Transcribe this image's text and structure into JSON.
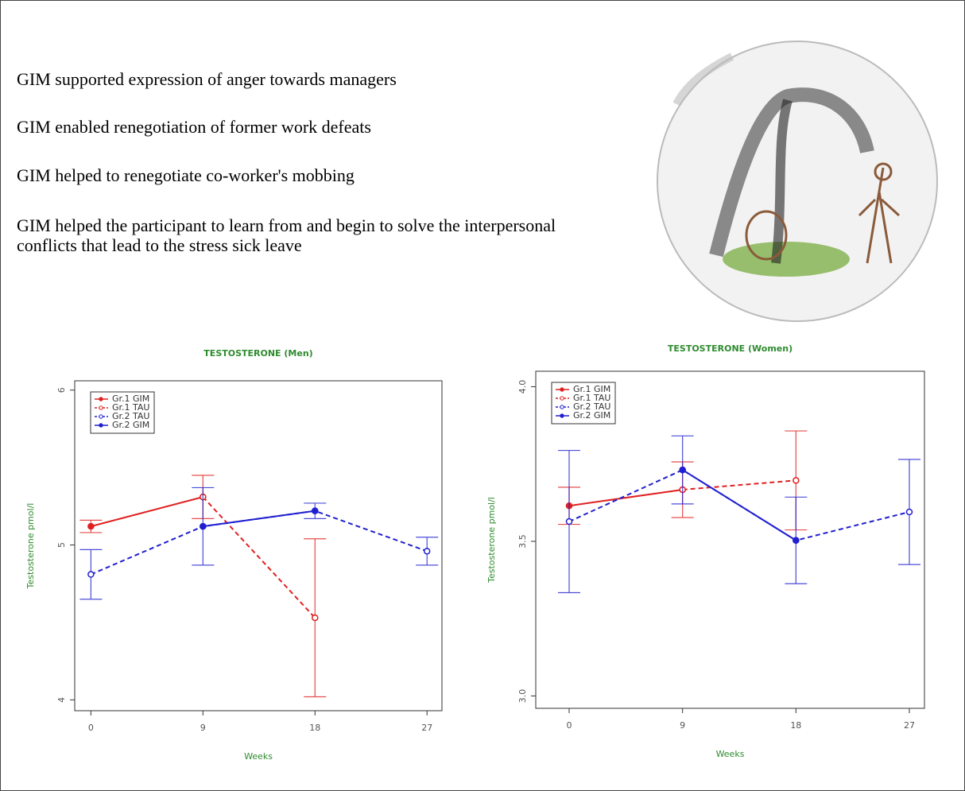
{
  "statements": [
    "GIM supported expression of anger towards managers",
    "GIM enabled renegotiation of former work defeats",
    "GIM helped to renegotiate co-worker's mobbing",
    "GIM helped the participant to learn from and begin to solve the interpersonal conflicts that lead to the stress sick leave"
  ],
  "chart_data": [
    {
      "type": "line",
      "title": "TESTOSTERONE (Men)",
      "x_label": "Weeks",
      "y_label": "Testosterone pmol/l",
      "x": [
        0,
        9,
        18,
        27
      ],
      "xlim": [
        -1.3,
        28.2
      ],
      "xticks": [
        0,
        9,
        18,
        27
      ],
      "ylim": [
        3.93,
        6.06
      ],
      "yticks": [
        4,
        5,
        6
      ],
      "legend": "upper left",
      "series": [
        {
          "name": "Gr.1 GIM",
          "color": "#e02020",
          "dashed": false,
          "values": [
            5.12,
            5.31,
            null,
            null
          ],
          "errors": [
            0.04,
            0.14,
            null,
            null
          ]
        },
        {
          "name": "Gr.1 TAU",
          "color": "#e02020",
          "dashed": true,
          "values": [
            null,
            5.31,
            4.53,
            null
          ],
          "errors": [
            null,
            null,
            0.51,
            null
          ]
        },
        {
          "name": "Gr.2 TAU",
          "color": "#2020d0",
          "dashed": true,
          "values": [
            4.81,
            5.12,
            5.22,
            4.96
          ],
          "errors": [
            0.16,
            0.25,
            null,
            0.09
          ]
        },
        {
          "name": "Gr.2 GIM",
          "color": "#2020d0",
          "dashed": false,
          "values": [
            null,
            5.12,
            5.22,
            null
          ],
          "errors": [
            null,
            null,
            0.05,
            null
          ]
        }
      ]
    },
    {
      "type": "line",
      "title": "TESTOSTERONE (Women)",
      "x_label": "Weeks",
      "y_label": "Testosterone pmol/l",
      "x": [
        0,
        9,
        18,
        27
      ],
      "xlim": [
        -2.65,
        28.2
      ],
      "xticks": [
        0,
        9,
        18,
        27
      ],
      "ylim": [
        2.96,
        4.05
      ],
      "yticks": [
        {
          "value": 3,
          "label": "3.0"
        },
        3.5,
        {
          "value": 4,
          "label": "4.0"
        }
      ],
      "legend": "upper left",
      "series": [
        {
          "name": "Gr.1 GIM",
          "color": "#e02020",
          "dashed": false,
          "values": [
            3.615,
            3.667,
            null,
            null
          ],
          "errors": [
            0.06,
            0.09,
            null,
            null
          ]
        },
        {
          "name": "Gr.1 TAU",
          "color": "#e02020",
          "dashed": true,
          "values": [
            null,
            3.667,
            3.697,
            null
          ],
          "errors": [
            null,
            null,
            0.16,
            null
          ]
        },
        {
          "name": "Gr.2 TAU",
          "color": "#2020d0",
          "dashed": true,
          "values": [
            3.564,
            3.731,
            3.503,
            3.595
          ],
          "errors": [
            0.23,
            0.11,
            null,
            0.17
          ]
        },
        {
          "name": "Gr.2 GIM",
          "color": "#2020d0",
          "dashed": false,
          "values": [
            null,
            3.731,
            3.503,
            null
          ],
          "errors": [
            null,
            null,
            0.14,
            null
          ]
        }
      ]
    }
  ]
}
